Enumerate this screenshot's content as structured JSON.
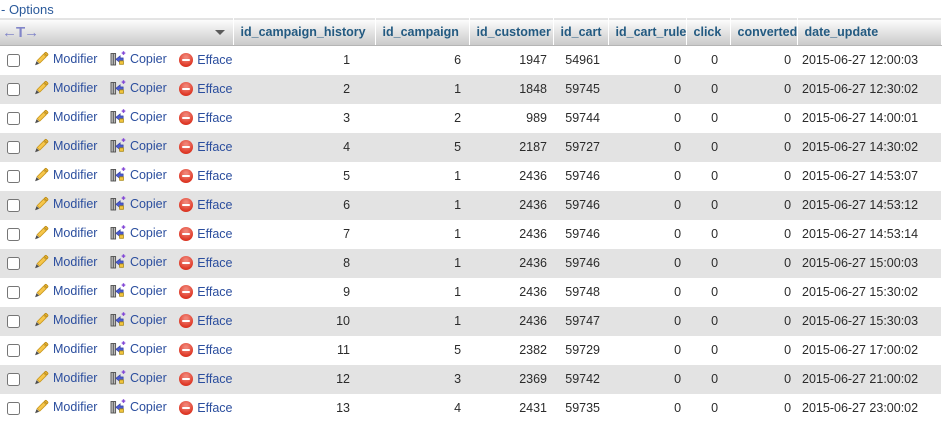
{
  "options": {
    "toggle_label": "- Options"
  },
  "icons": {
    "edit": "pencil-icon",
    "copy": "copy-table-row-icon",
    "delete": "red-minus-circle-icon",
    "header_dropdown": "triangle-down",
    "display_control": "left-right-arrows-with-T"
  },
  "colors": {
    "header_text": "#235a81",
    "link": "#2b4e9e",
    "row_stripe": "#e3e3e3",
    "delete_red": "#df3a28",
    "pencil_gold": "#f6c64b",
    "display_control_blue": "#8286c9"
  },
  "table": {
    "header": {
      "display_control": "←T→",
      "columns": [
        "id_campaign_history",
        "id_campaign",
        "id_customer",
        "id_cart",
        "id_cart_rule",
        "click",
        "converted",
        "date_update"
      ]
    },
    "row_actions": {
      "edit": "Modifier",
      "copy": "Copier",
      "delete": "Effacer"
    },
    "rows": [
      {
        "id_campaign_history": "1",
        "id_campaign": "6",
        "id_customer": "1947",
        "id_cart": "54961",
        "id_cart_rule": "0",
        "click": "0",
        "converted": "0",
        "date_update": "2015-06-27 12:00:03"
      },
      {
        "id_campaign_history": "2",
        "id_campaign": "1",
        "id_customer": "1848",
        "id_cart": "59745",
        "id_cart_rule": "0",
        "click": "0",
        "converted": "0",
        "date_update": "2015-06-27 12:30:02"
      },
      {
        "id_campaign_history": "3",
        "id_campaign": "2",
        "id_customer": "989",
        "id_cart": "59744",
        "id_cart_rule": "0",
        "click": "0",
        "converted": "0",
        "date_update": "2015-06-27 14:00:01"
      },
      {
        "id_campaign_history": "4",
        "id_campaign": "5",
        "id_customer": "2187",
        "id_cart": "59727",
        "id_cart_rule": "0",
        "click": "0",
        "converted": "0",
        "date_update": "2015-06-27 14:30:02"
      },
      {
        "id_campaign_history": "5",
        "id_campaign": "1",
        "id_customer": "2436",
        "id_cart": "59746",
        "id_cart_rule": "0",
        "click": "0",
        "converted": "0",
        "date_update": "2015-06-27 14:53:07"
      },
      {
        "id_campaign_history": "6",
        "id_campaign": "1",
        "id_customer": "2436",
        "id_cart": "59746",
        "id_cart_rule": "0",
        "click": "0",
        "converted": "0",
        "date_update": "2015-06-27 14:53:12"
      },
      {
        "id_campaign_history": "7",
        "id_campaign": "1",
        "id_customer": "2436",
        "id_cart": "59746",
        "id_cart_rule": "0",
        "click": "0",
        "converted": "0",
        "date_update": "2015-06-27 14:53:14"
      },
      {
        "id_campaign_history": "8",
        "id_campaign": "1",
        "id_customer": "2436",
        "id_cart": "59746",
        "id_cart_rule": "0",
        "click": "0",
        "converted": "0",
        "date_update": "2015-06-27 15:00:03"
      },
      {
        "id_campaign_history": "9",
        "id_campaign": "1",
        "id_customer": "2436",
        "id_cart": "59748",
        "id_cart_rule": "0",
        "click": "0",
        "converted": "0",
        "date_update": "2015-06-27 15:30:02"
      },
      {
        "id_campaign_history": "10",
        "id_campaign": "1",
        "id_customer": "2436",
        "id_cart": "59747",
        "id_cart_rule": "0",
        "click": "0",
        "converted": "0",
        "date_update": "2015-06-27 15:30:03"
      },
      {
        "id_campaign_history": "11",
        "id_campaign": "5",
        "id_customer": "2382",
        "id_cart": "59729",
        "id_cart_rule": "0",
        "click": "0",
        "converted": "0",
        "date_update": "2015-06-27 17:00:02"
      },
      {
        "id_campaign_history": "12",
        "id_campaign": "3",
        "id_customer": "2369",
        "id_cart": "59742",
        "id_cart_rule": "0",
        "click": "0",
        "converted": "0",
        "date_update": "2015-06-27 21:00:02"
      },
      {
        "id_campaign_history": "13",
        "id_campaign": "4",
        "id_customer": "2431",
        "id_cart": "59735",
        "id_cart_rule": "0",
        "click": "0",
        "converted": "0",
        "date_update": "2015-06-27 23:00:02"
      }
    ]
  }
}
